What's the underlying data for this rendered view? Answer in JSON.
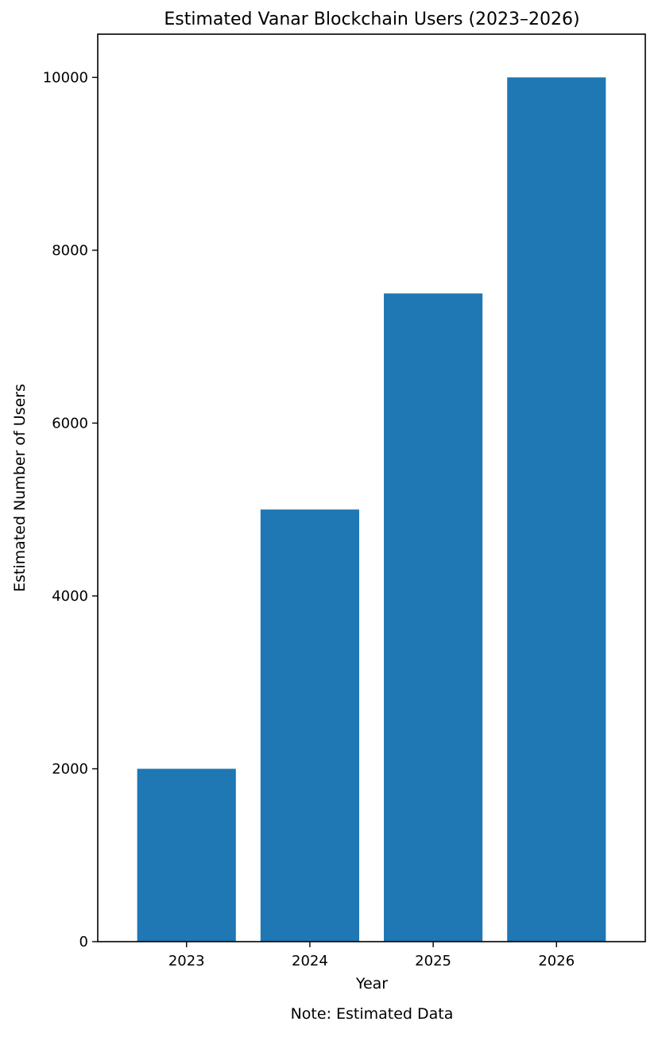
{
  "chart_data": {
    "type": "bar",
    "title": "Estimated Vanar Blockchain Users (2023–2026)",
    "xlabel": "Year",
    "ylabel": "Estimated Number of Users",
    "note": "Note: Estimated Data",
    "categories": [
      "2023",
      "2024",
      "2025",
      "2026"
    ],
    "values": [
      2000,
      5000,
      7500,
      10000
    ],
    "ylim": [
      0,
      10500
    ],
    "yticks": [
      0,
      2000,
      4000,
      6000,
      8000,
      10000
    ],
    "grid": false,
    "legend": "none",
    "bar_color": "#1f77b4"
  }
}
